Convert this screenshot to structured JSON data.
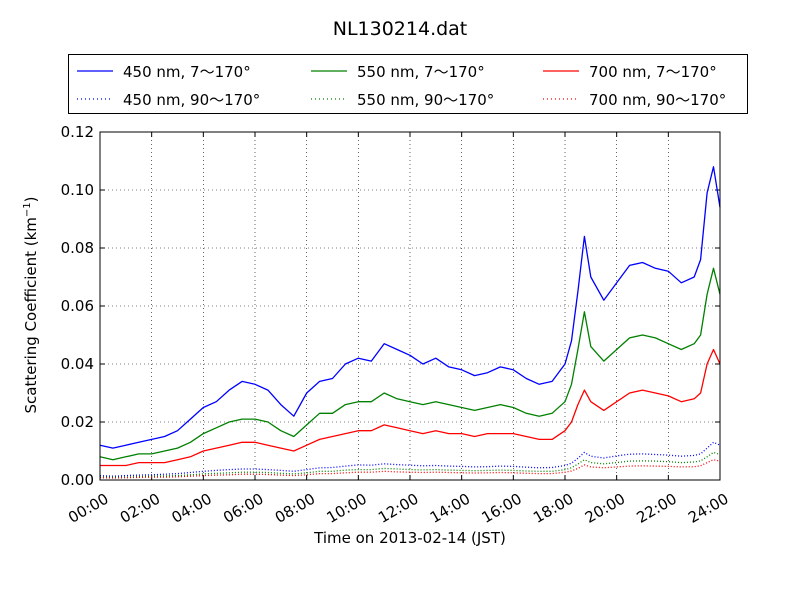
{
  "title": "NL130214.dat",
  "chart_data": {
    "type": "line",
    "title": "NL130214.dat",
    "xlabel": "Time on 2013-02-14 (JST)",
    "ylabel": "Scattering Coefficient (km",
    "ylabel_sup": "−1",
    "ylabel_end": ")",
    "xlim": [
      0,
      24
    ],
    "ylim": [
      0,
      0.12
    ],
    "grid": true,
    "legend_position": "top",
    "x_ticks": [
      "00:00",
      "02:00",
      "04:00",
      "06:00",
      "08:00",
      "10:00",
      "12:00",
      "14:00",
      "16:00",
      "18:00",
      "20:00",
      "22:00",
      "24:00"
    ],
    "y_ticks": [
      "0.00",
      "0.02",
      "0.04",
      "0.06",
      "0.08",
      "0.10",
      "0.12"
    ],
    "x": [
      0,
      0.5,
      1,
      1.5,
      2,
      2.5,
      3,
      3.5,
      4,
      4.5,
      5,
      5.5,
      6,
      6.5,
      7,
      7.5,
      8,
      8.5,
      9,
      9.5,
      10,
      10.5,
      11,
      11.5,
      12,
      12.5,
      13,
      13.5,
      14,
      14.5,
      15,
      15.5,
      16,
      16.5,
      17,
      17.5,
      18,
      18.25,
      18.5,
      18.75,
      19,
      19.5,
      20,
      20.5,
      21,
      21.5,
      22,
      22.5,
      23,
      23.25,
      23.5,
      23.75,
      24
    ],
    "series": [
      {
        "name": "450 nm, 7～170°",
        "color": "#0000ff",
        "style": "solid",
        "values": [
          0.012,
          0.011,
          0.012,
          0.013,
          0.014,
          0.015,
          0.017,
          0.021,
          0.025,
          0.027,
          0.031,
          0.034,
          0.033,
          0.031,
          0.026,
          0.022,
          0.03,
          0.034,
          0.035,
          0.04,
          0.042,
          0.041,
          0.047,
          0.045,
          0.043,
          0.04,
          0.042,
          0.039,
          0.038,
          0.036,
          0.037,
          0.039,
          0.038,
          0.035,
          0.033,
          0.034,
          0.04,
          0.048,
          0.065,
          0.084,
          0.07,
          0.062,
          0.068,
          0.074,
          0.075,
          0.073,
          0.072,
          0.068,
          0.07,
          0.076,
          0.099,
          0.108,
          0.094
        ]
      },
      {
        "name": "550 nm, 7～170°",
        "color": "#008000",
        "style": "solid",
        "values": [
          0.008,
          0.007,
          0.008,
          0.009,
          0.009,
          0.01,
          0.011,
          0.013,
          0.016,
          0.018,
          0.02,
          0.021,
          0.021,
          0.02,
          0.017,
          0.015,
          0.019,
          0.023,
          0.023,
          0.026,
          0.027,
          0.027,
          0.03,
          0.028,
          0.027,
          0.026,
          0.027,
          0.026,
          0.025,
          0.024,
          0.025,
          0.026,
          0.025,
          0.023,
          0.022,
          0.023,
          0.027,
          0.033,
          0.045,
          0.058,
          0.046,
          0.041,
          0.045,
          0.049,
          0.05,
          0.049,
          0.047,
          0.045,
          0.047,
          0.05,
          0.064,
          0.073,
          0.064
        ]
      },
      {
        "name": "700 nm, 7～170°",
        "color": "#ff0000",
        "style": "solid",
        "values": [
          0.005,
          0.005,
          0.005,
          0.006,
          0.006,
          0.006,
          0.007,
          0.008,
          0.01,
          0.011,
          0.012,
          0.013,
          0.013,
          0.012,
          0.011,
          0.01,
          0.012,
          0.014,
          0.015,
          0.016,
          0.017,
          0.017,
          0.019,
          0.018,
          0.017,
          0.016,
          0.017,
          0.016,
          0.016,
          0.015,
          0.016,
          0.016,
          0.016,
          0.015,
          0.014,
          0.014,
          0.017,
          0.02,
          0.026,
          0.031,
          0.027,
          0.024,
          0.027,
          0.03,
          0.031,
          0.03,
          0.029,
          0.027,
          0.028,
          0.03,
          0.04,
          0.045,
          0.04
        ]
      },
      {
        "name": "450 nm, 90～170°",
        "color": "#0000ff",
        "style": "dotted",
        "values": [
          0.0015,
          0.0013,
          0.0015,
          0.0017,
          0.0018,
          0.002,
          0.0022,
          0.0026,
          0.003,
          0.0033,
          0.0036,
          0.0038,
          0.0038,
          0.0036,
          0.0033,
          0.003,
          0.0036,
          0.0042,
          0.0043,
          0.0048,
          0.0052,
          0.0051,
          0.0056,
          0.0053,
          0.0051,
          0.0049,
          0.005,
          0.0048,
          0.0047,
          0.0045,
          0.0046,
          0.0048,
          0.0047,
          0.0044,
          0.0042,
          0.0043,
          0.005,
          0.0058,
          0.0075,
          0.0095,
          0.0082,
          0.0076,
          0.0083,
          0.0089,
          0.009,
          0.0088,
          0.0086,
          0.0082,
          0.0085,
          0.009,
          0.011,
          0.013,
          0.012
        ]
      },
      {
        "name": "550 nm, 90～170°",
        "color": "#008000",
        "style": "dotted",
        "values": [
          0.001,
          0.001,
          0.001,
          0.0012,
          0.0013,
          0.0014,
          0.0015,
          0.0018,
          0.0021,
          0.0023,
          0.0025,
          0.0027,
          0.0027,
          0.0026,
          0.0023,
          0.0021,
          0.0025,
          0.003,
          0.003,
          0.0034,
          0.0036,
          0.0036,
          0.004,
          0.0038,
          0.0036,
          0.0035,
          0.0036,
          0.0034,
          0.0033,
          0.0032,
          0.0033,
          0.0034,
          0.0033,
          0.0031,
          0.003,
          0.003,
          0.0036,
          0.0042,
          0.0055,
          0.007,
          0.006,
          0.0056,
          0.006,
          0.0065,
          0.0066,
          0.0065,
          0.0063,
          0.006,
          0.0062,
          0.0066,
          0.008,
          0.0095,
          0.0088
        ]
      },
      {
        "name": "700 nm, 90～170°",
        "color": "#ff0000",
        "style": "dotted",
        "values": [
          0.0008,
          0.0007,
          0.0008,
          0.0009,
          0.001,
          0.001,
          0.0011,
          0.0013,
          0.0015,
          0.0017,
          0.0018,
          0.002,
          0.002,
          0.0019,
          0.0017,
          0.0015,
          0.0018,
          0.0022,
          0.0022,
          0.0025,
          0.0027,
          0.0027,
          0.003,
          0.0028,
          0.0027,
          0.0026,
          0.0027,
          0.0026,
          0.0025,
          0.0024,
          0.0025,
          0.0026,
          0.0025,
          0.0023,
          0.0022,
          0.0022,
          0.0027,
          0.0031,
          0.004,
          0.0052,
          0.0045,
          0.0042,
          0.0045,
          0.0048,
          0.0049,
          0.0048,
          0.0047,
          0.0045,
          0.0046,
          0.0049,
          0.006,
          0.007,
          0.0065
        ]
      }
    ]
  }
}
